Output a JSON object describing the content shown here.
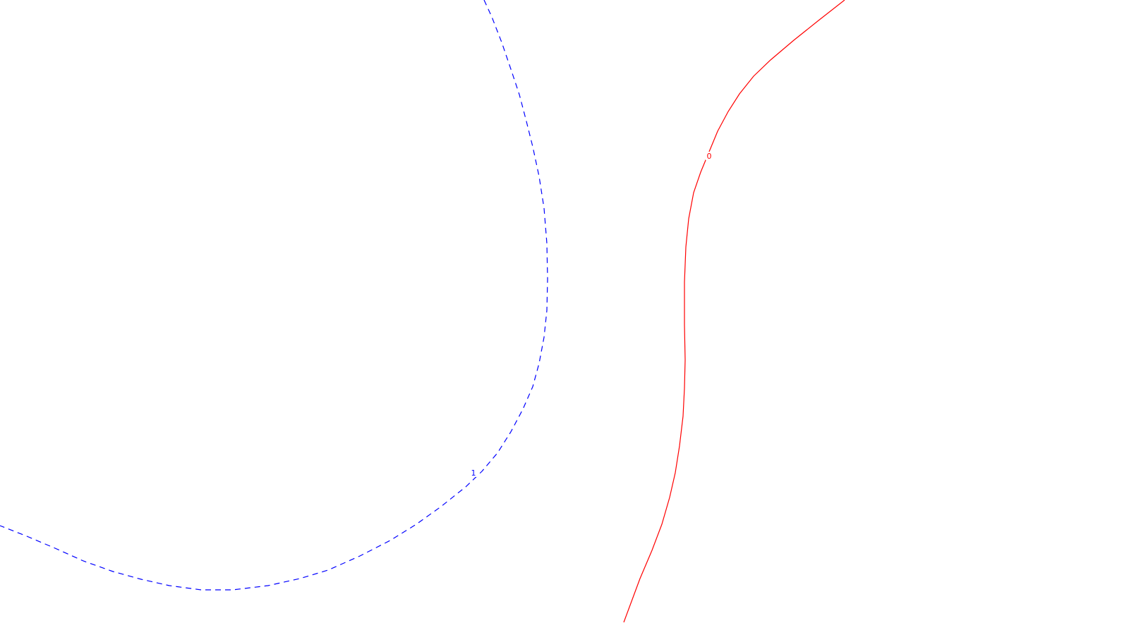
{
  "chart_data": {
    "type": "contour",
    "grid": false,
    "series": [
      {
        "level_label": "0",
        "color": "#ff0000",
        "line_style": "solid",
        "points": [
          [
            1197,
            0
          ],
          [
            1160,
            29
          ],
          [
            1125,
            57
          ],
          [
            1092,
            85
          ],
          [
            1068,
            108
          ],
          [
            1048,
            133
          ],
          [
            1032,
            158
          ],
          [
            1017,
            186
          ],
          [
            1005,
            215
          ],
          [
            993,
            244
          ],
          [
            983,
            273
          ],
          [
            976,
            310
          ],
          [
            972,
            350
          ],
          [
            970,
            400
          ],
          [
            970,
            460
          ],
          [
            971,
            510
          ],
          [
            970,
            550
          ],
          [
            968,
            590
          ],
          [
            963,
            632
          ],
          [
            957,
            670
          ],
          [
            949,
            705
          ],
          [
            938,
            743
          ],
          [
            924,
            780
          ],
          [
            907,
            820
          ],
          [
            884,
            882
          ]
        ]
      },
      {
        "level_label": "1",
        "color": "#0000ff",
        "line_style": "dashed",
        "points": [
          [
            686,
            0
          ],
          [
            697,
            24
          ],
          [
            711,
            60
          ],
          [
            724,
            98
          ],
          [
            736,
            134
          ],
          [
            746,
            172
          ],
          [
            755,
            208
          ],
          [
            764,
            250
          ],
          [
            771,
            295
          ],
          [
            775,
            345
          ],
          [
            776,
            395
          ],
          [
            775,
            440
          ],
          [
            771,
            478
          ],
          [
            764,
            515
          ],
          [
            755,
            548
          ],
          [
            741,
            580
          ],
          [
            724,
            612
          ],
          [
            705,
            642
          ],
          [
            683,
            668
          ],
          [
            660,
            690
          ],
          [
            625,
            718
          ],
          [
            590,
            743
          ],
          [
            553,
            766
          ],
          [
            510,
            788
          ],
          [
            465,
            808
          ],
          [
            425,
            820
          ],
          [
            380,
            830
          ],
          [
            330,
            836
          ],
          [
            285,
            836
          ],
          [
            240,
            830
          ],
          [
            200,
            821
          ],
          [
            160,
            810
          ],
          [
            118,
            795
          ],
          [
            78,
            777
          ],
          [
            38,
            760
          ],
          [
            0,
            745
          ]
        ]
      }
    ]
  }
}
